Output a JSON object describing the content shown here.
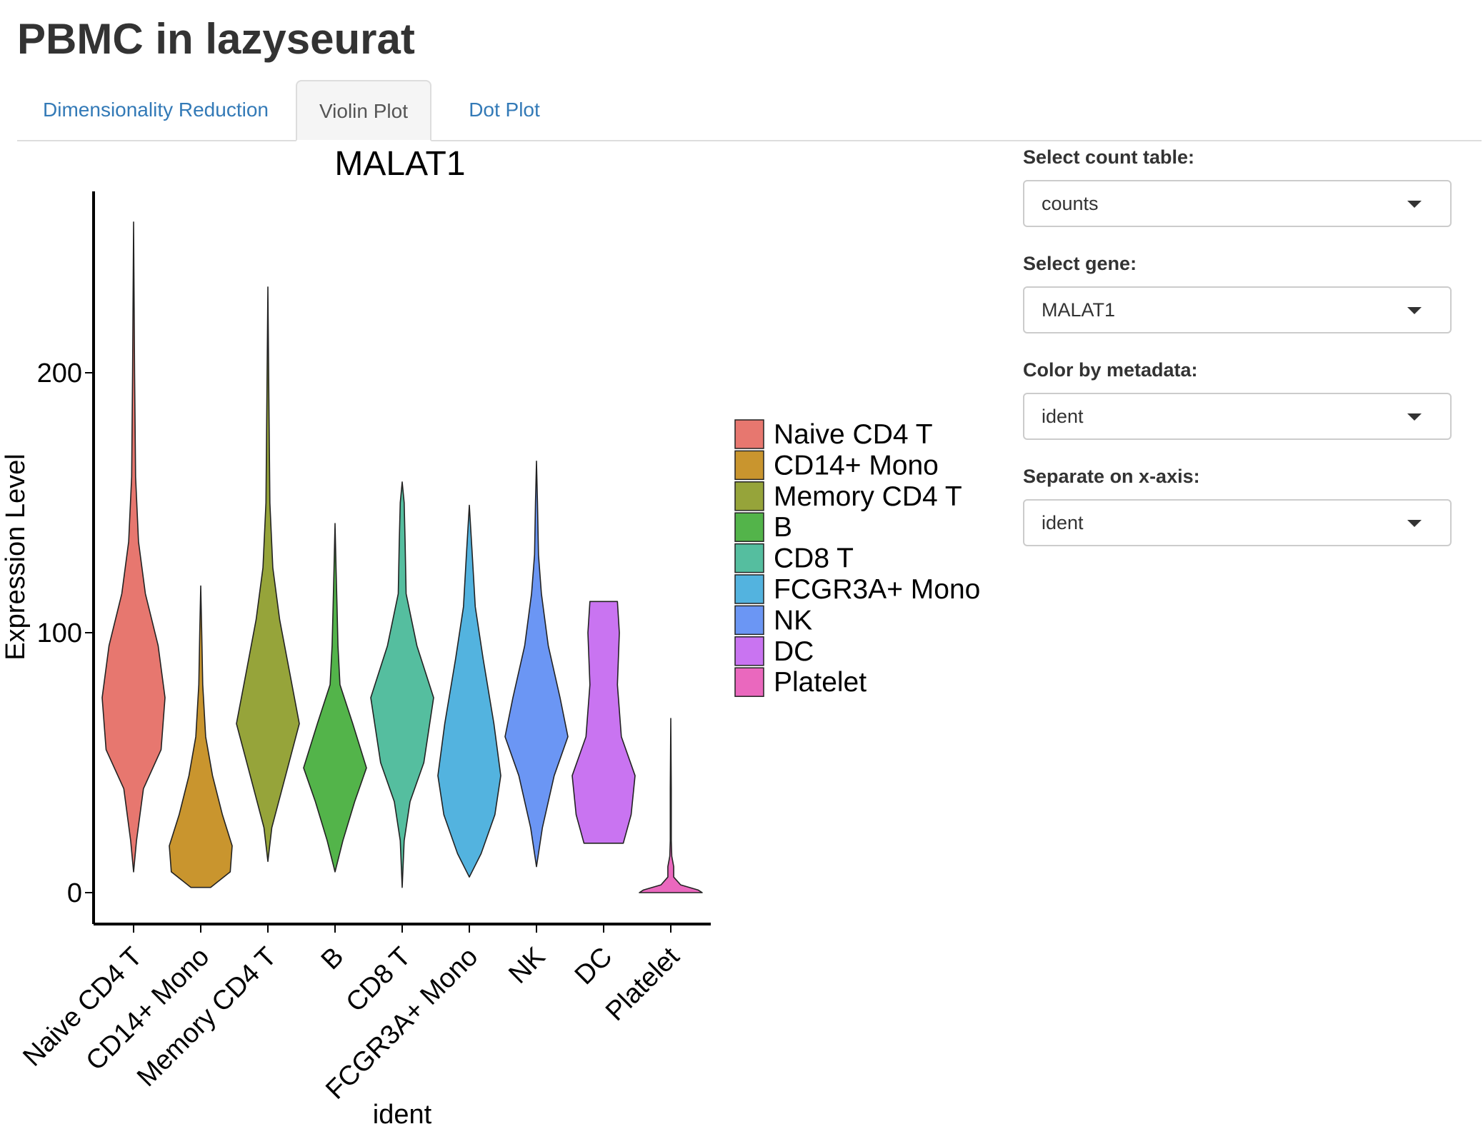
{
  "app": {
    "title": "PBMC in lazyseurat"
  },
  "tabs": [
    {
      "label": "Dimensionality Reduction",
      "active": false
    },
    {
      "label": "Violin Plot",
      "active": true
    },
    {
      "label": "Dot Plot",
      "active": false
    }
  ],
  "sidebar": {
    "count_table": {
      "label": "Select count table:",
      "value": "counts"
    },
    "gene": {
      "label": "Select gene:",
      "value": "MALAT1"
    },
    "color_by": {
      "label": "Color by metadata:",
      "value": "ident"
    },
    "x_axis": {
      "label": "Separate on x-axis:",
      "value": "ident"
    }
  },
  "chart_data": {
    "type": "violin",
    "title": "MALAT1",
    "xlabel": "ident",
    "ylabel": "Expression Level",
    "ylim": [
      -12,
      270
    ],
    "yticks": [
      0,
      100,
      200
    ],
    "legend_position": "right",
    "categories": [
      "Naive CD4 T",
      "CD14+ Mono",
      "Memory CD4 T",
      "B",
      "CD8 T",
      "FCGR3A+ Mono",
      "NK",
      "DC",
      "Platelet"
    ],
    "colors": [
      "#E7776F",
      "#C9952E",
      "#96A43A",
      "#53B44A",
      "#55BE9F",
      "#53B3DF",
      "#6B96F4",
      "#C974F1",
      "#EA68BE"
    ],
    "series": [
      {
        "min": 8,
        "max": 258,
        "profile": [
          [
            8,
            0
          ],
          [
            20,
            3
          ],
          [
            40,
            10
          ],
          [
            55,
            28
          ],
          [
            75,
            32
          ],
          [
            95,
            25
          ],
          [
            115,
            12
          ],
          [
            135,
            5
          ],
          [
            160,
            2
          ],
          [
            200,
            1
          ],
          [
            258,
            0
          ]
        ]
      },
      {
        "min": 2,
        "max": 118,
        "profile": [
          [
            2,
            10
          ],
          [
            8,
            30
          ],
          [
            18,
            32
          ],
          [
            30,
            22
          ],
          [
            45,
            12
          ],
          [
            60,
            5
          ],
          [
            80,
            2
          ],
          [
            100,
            1
          ],
          [
            118,
            0
          ]
        ]
      },
      {
        "min": 12,
        "max": 233,
        "profile": [
          [
            12,
            0
          ],
          [
            25,
            4
          ],
          [
            45,
            18
          ],
          [
            65,
            32
          ],
          [
            85,
            22
          ],
          [
            105,
            12
          ],
          [
            125,
            5
          ],
          [
            150,
            2
          ],
          [
            190,
            1
          ],
          [
            233,
            0
          ]
        ]
      },
      {
        "min": 8,
        "max": 142,
        "profile": [
          [
            8,
            0
          ],
          [
            20,
            8
          ],
          [
            35,
            20
          ],
          [
            48,
            32
          ],
          [
            65,
            18
          ],
          [
            80,
            5
          ],
          [
            95,
            3
          ],
          [
            110,
            2
          ],
          [
            125,
            1
          ],
          [
            142,
            0
          ]
        ]
      },
      {
        "min": 2,
        "max": 158,
        "profile": [
          [
            2,
            0
          ],
          [
            20,
            2
          ],
          [
            35,
            8
          ],
          [
            50,
            22
          ],
          [
            75,
            32
          ],
          [
            95,
            15
          ],
          [
            115,
            4
          ],
          [
            135,
            3
          ],
          [
            150,
            2
          ],
          [
            158,
            0
          ]
        ]
      },
      {
        "min": 6,
        "max": 149,
        "profile": [
          [
            6,
            0
          ],
          [
            15,
            12
          ],
          [
            30,
            26
          ],
          [
            45,
            32
          ],
          [
            65,
            25
          ],
          [
            90,
            14
          ],
          [
            110,
            6
          ],
          [
            130,
            3
          ],
          [
            149,
            0
          ]
        ]
      },
      {
        "min": 10,
        "max": 166,
        "profile": [
          [
            10,
            0
          ],
          [
            25,
            6
          ],
          [
            45,
            18
          ],
          [
            60,
            32
          ],
          [
            75,
            24
          ],
          [
            95,
            12
          ],
          [
            115,
            5
          ],
          [
            130,
            2
          ],
          [
            150,
            1
          ],
          [
            166,
            0
          ]
        ]
      },
      {
        "min": 19,
        "max": 112,
        "profile": [
          [
            19,
            20
          ],
          [
            30,
            28
          ],
          [
            45,
            32
          ],
          [
            60,
            18
          ],
          [
            80,
            14
          ],
          [
            100,
            16
          ],
          [
            112,
            14
          ]
        ]
      },
      {
        "min": 0,
        "max": 67,
        "profile": [
          [
            0,
            32
          ],
          [
            1,
            28
          ],
          [
            3,
            10
          ],
          [
            6,
            3
          ],
          [
            10,
            3
          ],
          [
            14,
            1
          ],
          [
            20,
            0.5
          ],
          [
            40,
            0.5
          ],
          [
            67,
            0
          ]
        ]
      }
    ]
  }
}
